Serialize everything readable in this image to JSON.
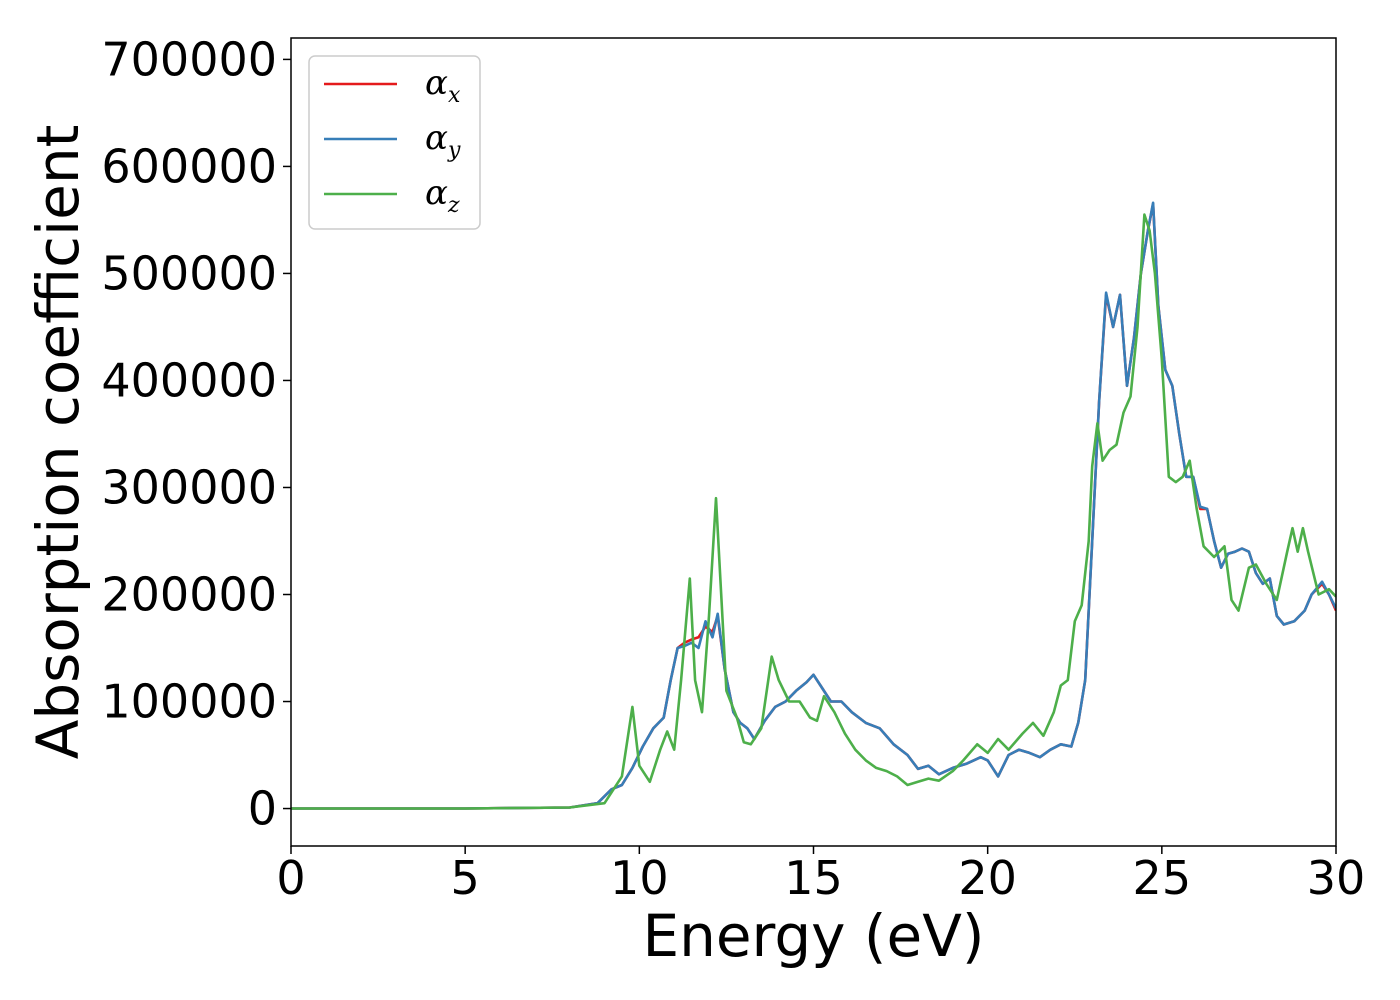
{
  "chart_data": {
    "type": "line",
    "xlabel": "Energy (eV)",
    "ylabel": "Absorption coefficient",
    "xlim": [
      0,
      30
    ],
    "ylim": [
      -35000,
      720000
    ],
    "xticks": [
      0,
      5,
      10,
      15,
      20,
      25,
      30
    ],
    "yticks": [
      0,
      100000,
      200000,
      300000,
      400000,
      500000,
      600000,
      700000
    ],
    "grid": false,
    "legend_position": "top-left",
    "series": [
      {
        "name": "α_x",
        "symbol": "α",
        "subscript": "x",
        "color": "#e41a1c",
        "x": [
          0,
          5,
          8,
          8.8,
          9.2,
          9.5,
          9.8,
          10.1,
          10.4,
          10.7,
          10.9,
          11.1,
          11.3,
          11.5,
          11.7,
          11.9,
          12.1,
          12.25,
          12.45,
          12.7,
          12.9,
          13.1,
          13.3,
          13.6,
          13.9,
          14.2,
          14.5,
          14.8,
          15.0,
          15.2,
          15.5,
          15.8,
          16.1,
          16.5,
          16.9,
          17.3,
          17.7,
          18.0,
          18.3,
          18.6,
          19.0,
          19.4,
          19.8,
          20.0,
          20.3,
          20.6,
          20.9,
          21.2,
          21.5,
          21.8,
          22.1,
          22.4,
          22.6,
          22.8,
          23.0,
          23.2,
          23.4,
          23.6,
          23.8,
          24.0,
          24.2,
          24.4,
          24.6,
          24.75,
          24.9,
          25.1,
          25.3,
          25.5,
          25.7,
          25.9,
          26.1,
          26.3,
          26.5,
          26.7,
          26.9,
          27.1,
          27.3,
          27.5,
          27.7,
          27.9,
          28.1,
          28.3,
          28.5,
          28.8,
          29.1,
          29.3,
          29.6,
          29.8,
          30.0
        ],
        "y": [
          0,
          0,
          1000,
          5000,
          18000,
          22000,
          38000,
          58000,
          75000,
          85000,
          120000,
          150000,
          155000,
          158000,
          160000,
          170000,
          165000,
          180000,
          130000,
          90000,
          80000,
          75000,
          65000,
          82000,
          95000,
          100000,
          110000,
          118000,
          125000,
          115000,
          100000,
          100000,
          90000,
          80000,
          75000,
          60000,
          50000,
          37000,
          40000,
          32000,
          38000,
          42000,
          48000,
          45000,
          30000,
          50000,
          55000,
          52000,
          48000,
          55000,
          60000,
          58000,
          80000,
          120000,
          250000,
          380000,
          480000,
          450000,
          480000,
          395000,
          440000,
          500000,
          540000,
          565000,
          470000,
          410000,
          395000,
          350000,
          310000,
          310000,
          280000,
          280000,
          250000,
          225000,
          238000,
          240000,
          243000,
          240000,
          220000,
          210000,
          215000,
          180000,
          172000,
          175000,
          185000,
          200000,
          210000,
          200000,
          185000
        ]
      },
      {
        "name": "α_y",
        "symbol": "α",
        "subscript": "y",
        "color": "#377eb8",
        "x": [
          0,
          5,
          8,
          8.8,
          9.2,
          9.5,
          9.8,
          10.1,
          10.4,
          10.7,
          10.9,
          11.1,
          11.3,
          11.5,
          11.7,
          11.9,
          12.1,
          12.25,
          12.45,
          12.7,
          12.9,
          13.1,
          13.3,
          13.6,
          13.9,
          14.2,
          14.5,
          14.8,
          15.0,
          15.2,
          15.5,
          15.8,
          16.1,
          16.5,
          16.9,
          17.3,
          17.7,
          18.0,
          18.3,
          18.6,
          19.0,
          19.4,
          19.8,
          20.0,
          20.3,
          20.6,
          20.9,
          21.2,
          21.5,
          21.8,
          22.1,
          22.4,
          22.6,
          22.8,
          23.0,
          23.2,
          23.4,
          23.6,
          23.8,
          24.0,
          24.2,
          24.4,
          24.6,
          24.75,
          24.9,
          25.1,
          25.3,
          25.5,
          25.7,
          25.9,
          26.1,
          26.3,
          26.5,
          26.7,
          26.9,
          27.1,
          27.3,
          27.5,
          27.7,
          27.9,
          28.1,
          28.3,
          28.5,
          28.8,
          29.1,
          29.3,
          29.6,
          29.8,
          30.0
        ],
        "y": [
          0,
          0,
          1000,
          5000,
          18000,
          22000,
          38000,
          58000,
          75000,
          85000,
          120000,
          150000,
          152000,
          155000,
          150000,
          175000,
          160000,
          182000,
          130000,
          90000,
          80000,
          75000,
          65000,
          82000,
          95000,
          100000,
          110000,
          118000,
          125000,
          115000,
          100000,
          100000,
          90000,
          80000,
          75000,
          60000,
          50000,
          37000,
          40000,
          32000,
          38000,
          42000,
          48000,
          45000,
          30000,
          50000,
          55000,
          52000,
          48000,
          55000,
          60000,
          58000,
          80000,
          120000,
          250000,
          380000,
          482000,
          450000,
          480000,
          395000,
          440000,
          500000,
          540000,
          566000,
          470000,
          410000,
          395000,
          350000,
          310000,
          310000,
          282000,
          280000,
          250000,
          225000,
          238000,
          240000,
          243000,
          240000,
          220000,
          210000,
          215000,
          180000,
          172000,
          175000,
          185000,
          200000,
          212000,
          200000,
          187000
        ]
      },
      {
        "name": "α_z",
        "symbol": "α",
        "subscript": "z",
        "color": "#4daf4a",
        "x": [
          0,
          5,
          8,
          9.0,
          9.5,
          9.8,
          10.0,
          10.3,
          10.6,
          10.8,
          11.0,
          11.2,
          11.45,
          11.6,
          11.8,
          12.0,
          12.2,
          12.35,
          12.5,
          12.8,
          13.0,
          13.2,
          13.5,
          13.8,
          14.0,
          14.3,
          14.6,
          14.9,
          15.1,
          15.3,
          15.6,
          15.9,
          16.2,
          16.5,
          16.8,
          17.1,
          17.4,
          17.7,
          18.0,
          18.3,
          18.6,
          19.0,
          19.3,
          19.7,
          20.0,
          20.3,
          20.6,
          21.0,
          21.3,
          21.6,
          21.9,
          22.1,
          22.3,
          22.5,
          22.7,
          22.9,
          23.0,
          23.15,
          23.3,
          23.5,
          23.7,
          23.9,
          24.1,
          24.3,
          24.5,
          24.65,
          24.8,
          25.0,
          25.2,
          25.4,
          25.6,
          25.8,
          26.0,
          26.2,
          26.5,
          26.8,
          27.0,
          27.2,
          27.5,
          27.7,
          28.0,
          28.3,
          28.6,
          28.75,
          28.9,
          29.05,
          29.2,
          29.5,
          29.8,
          30.0
        ],
        "y": [
          0,
          0,
          1000,
          5000,
          30000,
          95000,
          40000,
          25000,
          55000,
          72000,
          55000,
          120000,
          215000,
          120000,
          90000,
          180000,
          290000,
          200000,
          110000,
          85000,
          62000,
          60000,
          75000,
          142000,
          120000,
          100000,
          100000,
          85000,
          82000,
          105000,
          90000,
          70000,
          55000,
          45000,
          38000,
          35000,
          30000,
          22000,
          25000,
          28000,
          26000,
          35000,
          45000,
          60000,
          52000,
          65000,
          55000,
          70000,
          80000,
          68000,
          90000,
          115000,
          120000,
          175000,
          190000,
          250000,
          320000,
          360000,
          325000,
          335000,
          340000,
          370000,
          385000,
          450000,
          555000,
          540000,
          500000,
          420000,
          310000,
          305000,
          310000,
          325000,
          280000,
          245000,
          235000,
          245000,
          195000,
          185000,
          225000,
          228000,
          210000,
          195000,
          240000,
          262000,
          240000,
          262000,
          240000,
          200000,
          205000,
          198000
        ]
      }
    ]
  }
}
